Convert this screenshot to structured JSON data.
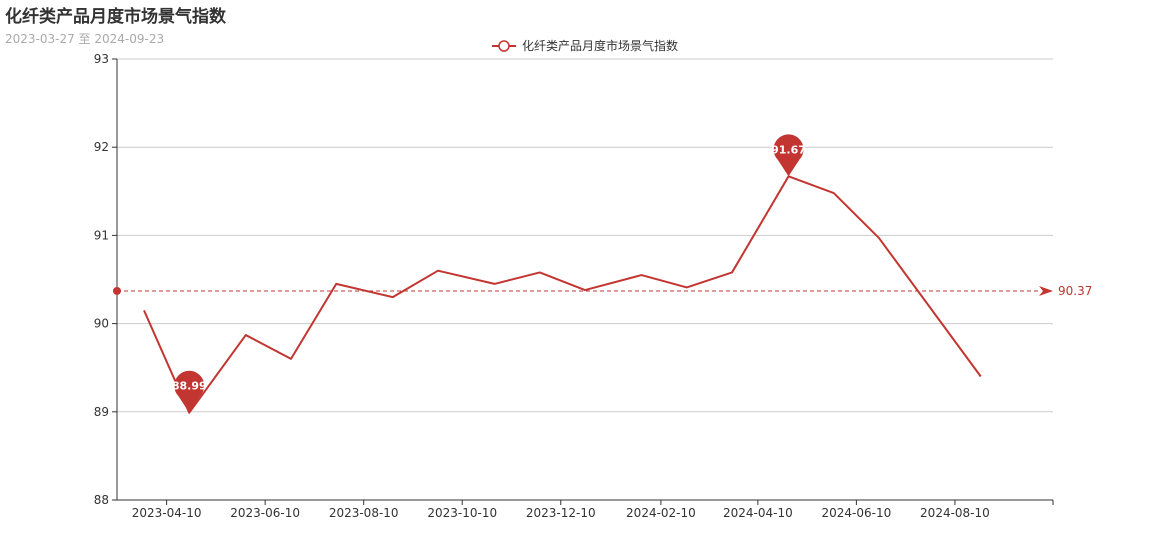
{
  "header": {
    "title": "化纤类产品月度市场景气指数",
    "subtitle": "2023-03-27 至 2024-09-23"
  },
  "colors": {
    "series": "#c23531",
    "grid": "#cccccc",
    "axis": "#333333"
  },
  "chart_data": {
    "type": "line",
    "title": "化纤类产品月度市场景气指数",
    "subtitle": "2023-03-27 至 2024-09-23",
    "xlabel": "",
    "ylabel": "",
    "x": [
      "2023-03-27",
      "2023-04-24",
      "2023-05-29",
      "2023-06-26",
      "2023-07-24",
      "2023-08-28",
      "2023-09-25",
      "2023-10-30",
      "2023-11-27",
      "2023-12-25",
      "2024-01-29",
      "2024-02-26",
      "2024-03-25",
      "2024-04-29",
      "2024-05-27",
      "2024-06-24",
      "2024-07-29",
      "2024-08-26",
      "2024-09-23"
    ],
    "series": [
      {
        "name": "化纤类产品月度市场景气指数",
        "values": [
          90.15,
          88.99,
          89.87,
          89.6,
          90.45,
          90.3,
          90.6,
          90.45,
          90.58,
          90.38,
          90.55,
          90.41,
          90.58,
          91.67,
          91.48,
          90.97,
          null,
          89.4,
          null
        ]
      }
    ],
    "x_ticks": [
      "2023-04-10",
      "2023-06-10",
      "2023-08-10",
      "2023-10-10",
      "2023-12-10",
      "2024-02-10",
      "2024-04-10",
      "2024-06-10",
      "2024-08-10"
    ],
    "y_ticks": [
      88,
      89,
      90,
      91,
      92,
      93
    ],
    "ylim": [
      88,
      93
    ],
    "grid": true,
    "legend": "top-center",
    "mark_points": [
      {
        "label": "88.99",
        "x": "2023-04-24",
        "y": 88.99
      },
      {
        "label": "91.67",
        "x": "2024-04-29",
        "y": 91.67
      }
    ],
    "mark_line": {
      "label": "90.37",
      "y": 90.37
    }
  }
}
